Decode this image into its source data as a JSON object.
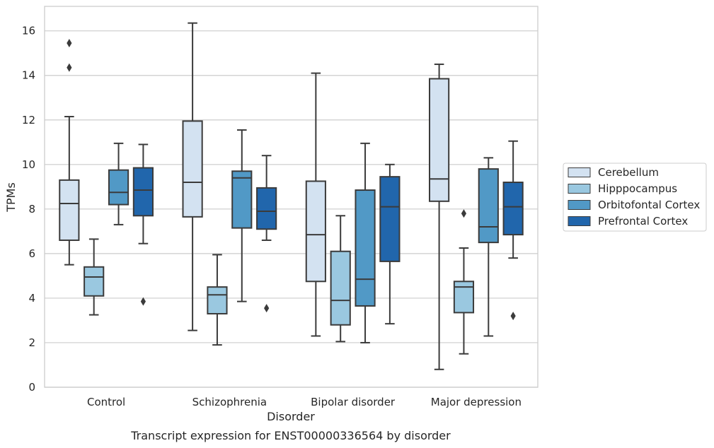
{
  "chart_data": {
    "type": "box",
    "xlabel": "Disorder",
    "ylabel": "TPMs",
    "caption": "Transcript expression for ENST00000336564 by disorder",
    "ylim": [
      0,
      17.1
    ],
    "yticks": [
      0,
      2,
      4,
      6,
      8,
      10,
      12,
      14,
      16
    ],
    "grid": "horizontal",
    "legend_position": "right",
    "categories": [
      "Control",
      "Schizophrenia",
      "Bipolar disorder",
      "Major depression"
    ],
    "series": [
      {
        "name": "Cerebellum",
        "color": "#d3e2f1",
        "boxes": [
          {
            "whisker_low": 5.5,
            "q1": 6.6,
            "median": 8.25,
            "q3": 9.3,
            "whisker_high": 12.15,
            "outliers": [
              14.35,
              15.45
            ]
          },
          {
            "whisker_low": 2.55,
            "q1": 7.65,
            "median": 9.2,
            "q3": 11.95,
            "whisker_high": 16.35,
            "outliers": []
          },
          {
            "whisker_low": 2.3,
            "q1": 4.75,
            "median": 6.85,
            "q3": 9.25,
            "whisker_high": 14.1,
            "outliers": []
          },
          {
            "whisker_low": 0.8,
            "q1": 8.35,
            "median": 9.35,
            "q3": 13.85,
            "whisker_high": 14.5,
            "outliers": []
          }
        ]
      },
      {
        "name": "Hipppocampus",
        "color": "#9ac8e0",
        "boxes": [
          {
            "whisker_low": 3.25,
            "q1": 4.1,
            "median": 4.95,
            "q3": 5.4,
            "whisker_high": 6.65,
            "outliers": []
          },
          {
            "whisker_low": 1.9,
            "q1": 3.3,
            "median": 4.15,
            "q3": 4.5,
            "whisker_high": 5.95,
            "outliers": []
          },
          {
            "whisker_low": 2.05,
            "q1": 2.8,
            "median": 3.9,
            "q3": 6.1,
            "whisker_high": 7.7,
            "outliers": []
          },
          {
            "whisker_low": 1.5,
            "q1": 3.35,
            "median": 4.5,
            "q3": 4.75,
            "whisker_high": 6.25,
            "outliers": [
              7.8
            ]
          }
        ]
      },
      {
        "name": "Orbitofontal Cortex",
        "color": "#5199c6",
        "boxes": [
          {
            "whisker_low": 7.3,
            "q1": 8.2,
            "median": 8.75,
            "q3": 9.75,
            "whisker_high": 10.95,
            "outliers": []
          },
          {
            "whisker_low": 3.85,
            "q1": 7.15,
            "median": 9.4,
            "q3": 9.7,
            "whisker_high": 11.55,
            "outliers": []
          },
          {
            "whisker_low": 2.0,
            "q1": 3.65,
            "median": 4.85,
            "q3": 8.85,
            "whisker_high": 10.95,
            "outliers": []
          },
          {
            "whisker_low": 2.3,
            "q1": 6.5,
            "median": 7.2,
            "q3": 9.8,
            "whisker_high": 10.3,
            "outliers": []
          }
        ]
      },
      {
        "name": "Prefrontal Cortex",
        "color": "#2166ac",
        "boxes": [
          {
            "whisker_low": 6.45,
            "q1": 7.7,
            "median": 8.85,
            "q3": 9.85,
            "whisker_high": 10.9,
            "outliers": [
              3.85
            ]
          },
          {
            "whisker_low": 6.6,
            "q1": 7.1,
            "median": 7.9,
            "q3": 8.95,
            "whisker_high": 10.4,
            "outliers": [
              3.55
            ]
          },
          {
            "whisker_low": 2.85,
            "q1": 5.65,
            "median": 8.1,
            "q3": 9.45,
            "whisker_high": 10.0,
            "outliers": []
          },
          {
            "whisker_low": 5.8,
            "q1": 6.85,
            "median": 8.1,
            "q3": 9.2,
            "whisker_high": 11.05,
            "outliers": [
              3.2
            ]
          }
        ]
      }
    ]
  }
}
